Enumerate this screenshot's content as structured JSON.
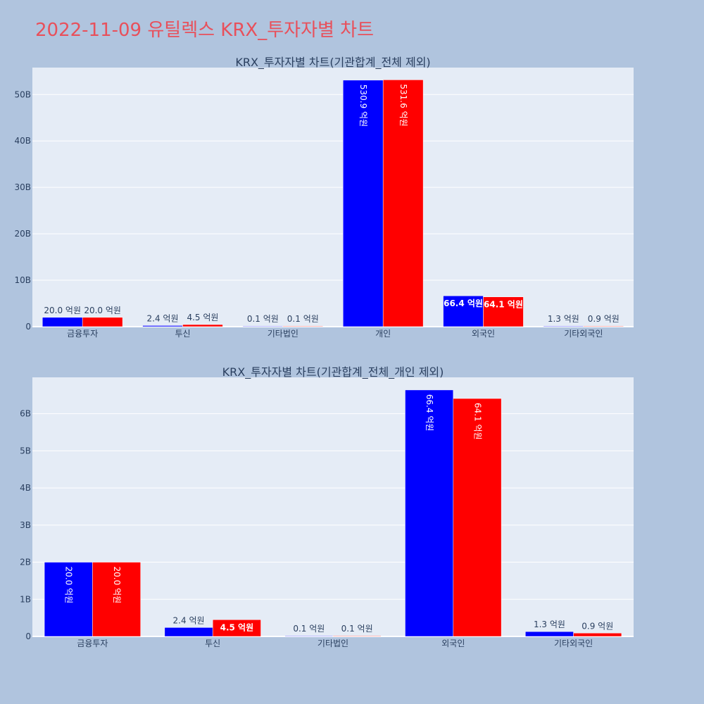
{
  "title": "2022-11-09 유틸렉스 KRX_투자자별 차트",
  "colors": {
    "buy": "#0000ff",
    "sell": "#ff0000"
  },
  "chart_data": [
    {
      "type": "bar",
      "title": "KRX_투자자별 차트(기관합계_전체 제외)",
      "categories": [
        "금융투자",
        "투신",
        "기타법인",
        "개인",
        "외국인",
        "기타외국인"
      ],
      "series": [
        {
          "values": [
            2000000000,
            240000000,
            10000000,
            53090000000,
            6640000000,
            130000000
          ],
          "labels": [
            "20.0 억원",
            "2.4 억원",
            "0.1 억원",
            "530.9 억원",
            "66.4 억원",
            "1.3 억원"
          ]
        },
        {
          "values": [
            2000000000,
            450000000,
            10000000,
            53160000000,
            6410000000,
            90000000
          ],
          "labels": [
            "20.0 억원",
            "4.5 억원",
            "0.1 억원",
            "531.6 억원",
            "64.1 억원",
            "0.9 억원"
          ]
        }
      ],
      "yticks": [
        0,
        10000000000,
        20000000000,
        30000000000,
        40000000000,
        50000000000
      ],
      "ytick_labels": [
        "0",
        "10B",
        "20B",
        "30B",
        "40B",
        "50B"
      ],
      "ylim": [
        0,
        55800000000
      ],
      "grid": true
    },
    {
      "type": "bar",
      "title": "KRX_투자자별 차트(기관합계_전체_개인 제외)",
      "categories": [
        "금융투자",
        "투신",
        "기타법인",
        "외국인",
        "기타외국인"
      ],
      "series": [
        {
          "values": [
            2000000000,
            240000000,
            10000000,
            6640000000,
            130000000
          ],
          "labels": [
            "20.0 억원",
            "2.4 억원",
            "0.1 억원",
            "66.4 억원",
            "1.3 억원"
          ]
        },
        {
          "values": [
            2000000000,
            450000000,
            10000000,
            6410000000,
            90000000
          ],
          "labels": [
            "20.0 억원",
            "4.5 억원",
            "0.1 억원",
            "64.1 억원",
            "0.9 억원"
          ]
        }
      ],
      "yticks": [
        0,
        1000000000,
        2000000000,
        3000000000,
        4000000000,
        5000000000,
        6000000000
      ],
      "ytick_labels": [
        "0",
        "1B",
        "2B",
        "3B",
        "4B",
        "5B",
        "6B"
      ],
      "ylim": [
        0,
        6980000000
      ],
      "grid": true
    }
  ]
}
